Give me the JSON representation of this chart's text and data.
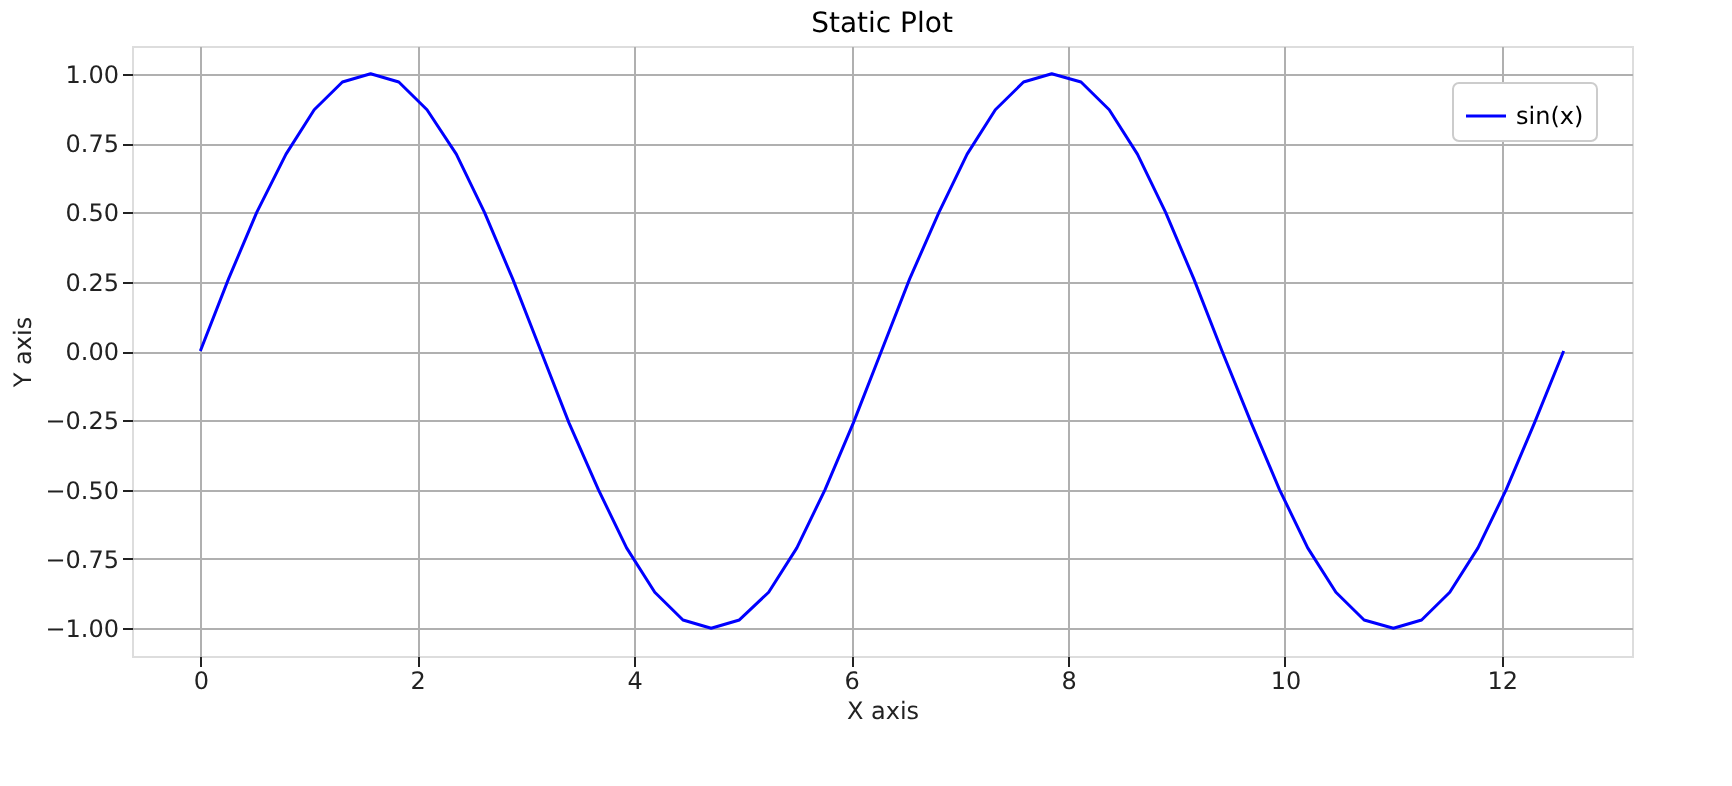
{
  "chart_data": {
    "type": "line",
    "title": "Static Plot",
    "xlabel": "X axis",
    "ylabel": "Y axis",
    "x": [
      0,
      0.26,
      0.52,
      0.79,
      1.05,
      1.31,
      1.57,
      1.83,
      2.09,
      2.36,
      2.62,
      2.88,
      3.14,
      3.4,
      3.67,
      3.93,
      4.19,
      4.45,
      4.71,
      4.97,
      5.24,
      5.5,
      5.76,
      6.02,
      6.28,
      6.54,
      6.81,
      7.07,
      7.33,
      7.59,
      7.85,
      8.12,
      8.38,
      8.64,
      8.9,
      9.16,
      9.42,
      9.69,
      9.95,
      10.21,
      10.47,
      10.73,
      11.0,
      11.26,
      11.52,
      11.78,
      12.04,
      12.3,
      12.57
    ],
    "series": [
      {
        "name": "sin(x)",
        "color": "#0000ff",
        "values": [
          0,
          0.26,
          0.5,
          0.71,
          0.87,
          0.97,
          1,
          0.97,
          0.87,
          0.71,
          0.5,
          0.26,
          0,
          -0.26,
          -0.5,
          -0.71,
          -0.87,
          -0.97,
          -1,
          -0.97,
          -0.87,
          -0.71,
          -0.5,
          -0.26,
          0,
          0.26,
          0.5,
          0.71,
          0.87,
          0.97,
          1,
          0.97,
          0.87,
          0.71,
          0.5,
          0.26,
          0,
          -0.26,
          -0.5,
          -0.71,
          -0.87,
          -0.97,
          -1,
          -0.97,
          -0.87,
          -0.71,
          -0.5,
          -0.26,
          0
        ]
      }
    ],
    "xlim": [
      -0.63,
      13.2
    ],
    "ylim": [
      -1.1,
      1.1
    ],
    "xticks": [
      0,
      2,
      4,
      6,
      8,
      10,
      12
    ],
    "yticks": [
      {
        "value": -1,
        "label": "−1.00"
      },
      {
        "value": -0.75,
        "label": "−0.75"
      },
      {
        "value": -0.5,
        "label": "−0.50"
      },
      {
        "value": -0.25,
        "label": "−0.25"
      },
      {
        "value": 0,
        "label": "0.00"
      },
      {
        "value": 0.25,
        "label": "0.25"
      },
      {
        "value": 0.5,
        "label": "0.50"
      },
      {
        "value": 0.75,
        "label": "0.75"
      },
      {
        "value": 1,
        "label": "1.00"
      }
    ],
    "grid": true,
    "legend": "top right",
    "marker": "none",
    "line_style": "solid"
  }
}
